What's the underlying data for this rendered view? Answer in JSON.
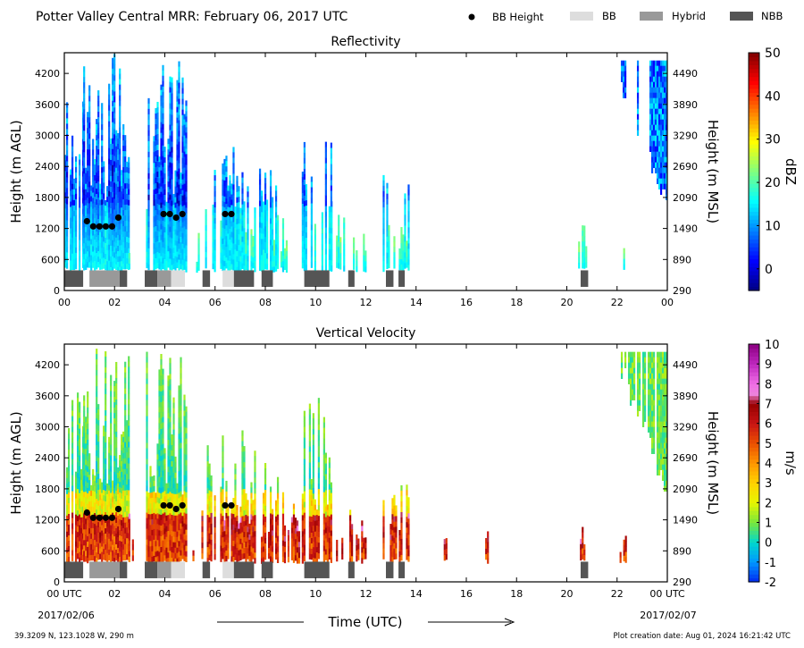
{
  "figure": {
    "title": "Potter Valley Central MRR:  February 06, 2017 UTC",
    "legend": [
      {
        "label": "BB Height",
        "type": "dot",
        "color": "#000000"
      },
      {
        "label": "BB",
        "type": "bar",
        "color": "#dddddd"
      },
      {
        "label": "Hybrid",
        "type": "bar",
        "color": "#999999"
      },
      {
        "label": "NBB",
        "type": "bar",
        "color": "#555555"
      }
    ],
    "footer_left": "39.3209 N, 123.1028 W, 290 m",
    "footer_right": "Plot creation date: Aug 01, 2024 16:21:42 UTC",
    "xlabel": "Time (UTC)",
    "date_start": "2017/02/06",
    "date_end": "2017/02/07"
  },
  "chart_data": [
    {
      "type": "heatmap",
      "title": "Reflectivity",
      "xlabel": "Time (UTC)",
      "ylabel": "Height (m AGL)",
      "ylabel_right": "Height (m MSL)",
      "colorbar_label": "dBZ",
      "colorbar_range": [
        -5,
        50
      ],
      "colorbar_ticks": [
        "0",
        "10",
        "20",
        "30",
        "40",
        "50"
      ],
      "colorbar_tick_values": [
        0,
        10,
        20,
        30,
        40,
        50
      ],
      "x_range": [
        0,
        24
      ],
      "x_ticks": [
        "00",
        "02",
        "04",
        "06",
        "08",
        "10",
        "12",
        "14",
        "16",
        "18",
        "20",
        "22",
        "00"
      ],
      "y_range": [
        0,
        4600
      ],
      "y_ticks": [
        0,
        600,
        1200,
        1800,
        2400,
        3000,
        3600,
        4200
      ],
      "y_ticks_right": [
        290,
        890,
        1490,
        2090,
        2690,
        3290,
        3890,
        4490
      ],
      "bb_height": [
        {
          "t": 0.9,
          "h": 1340
        },
        {
          "t": 1.15,
          "h": 1240
        },
        {
          "t": 1.4,
          "h": 1240
        },
        {
          "t": 1.65,
          "h": 1240
        },
        {
          "t": 1.9,
          "h": 1240
        },
        {
          "t": 2.15,
          "h": 1410
        },
        {
          "t": 3.95,
          "h": 1480
        },
        {
          "t": 4.2,
          "h": 1480
        },
        {
          "t": 4.45,
          "h": 1410
        },
        {
          "t": 4.7,
          "h": 1480
        },
        {
          "t": 6.4,
          "h": 1480
        },
        {
          "t": 6.65,
          "h": 1480
        }
      ],
      "classification": [
        {
          "start": 0.0,
          "end": 0.75,
          "class": "NBB"
        },
        {
          "start": 1.0,
          "end": 2.2,
          "class": "Hybrid"
        },
        {
          "start": 2.2,
          "end": 2.5,
          "class": "NBB"
        },
        {
          "start": 3.2,
          "end": 3.7,
          "class": "NBB"
        },
        {
          "start": 3.7,
          "end": 4.25,
          "class": "Hybrid"
        },
        {
          "start": 4.25,
          "end": 4.8,
          "class": "BB"
        },
        {
          "start": 5.5,
          "end": 5.8,
          "class": "NBB"
        },
        {
          "start": 6.3,
          "end": 6.75,
          "class": "BB"
        },
        {
          "start": 6.75,
          "end": 7.55,
          "class": "NBB"
        },
        {
          "start": 7.85,
          "end": 8.3,
          "class": "NBB"
        },
        {
          "start": 9.55,
          "end": 10.55,
          "class": "NBB"
        },
        {
          "start": 11.3,
          "end": 11.55,
          "class": "NBB"
        },
        {
          "start": 12.8,
          "end": 13.1,
          "class": "NBB"
        },
        {
          "start": 13.3,
          "end": 13.55,
          "class": "NBB"
        },
        {
          "start": 20.55,
          "end": 20.85,
          "class": "NBB"
        }
      ]
    },
    {
      "type": "heatmap",
      "title": "Vertical Velocity",
      "xlabel": "Time (UTC)",
      "ylabel": "Height (m AGL)",
      "ylabel_right": "Height (m MSL)",
      "colorbar_label": "m/s",
      "colorbar_range": [
        -2,
        10
      ],
      "colorbar_ticks": [
        "-2",
        "-1",
        "0",
        "1",
        "2",
        "3",
        "4",
        "5",
        "6",
        "7",
        "8",
        "9",
        "10"
      ],
      "colorbar_tick_values": [
        -2,
        -1,
        0,
        1,
        2,
        3,
        4,
        5,
        6,
        7,
        8,
        9,
        10
      ],
      "x_range": [
        0,
        24
      ],
      "x_ticks": [
        "00 UTC",
        "02",
        "04",
        "06",
        "08",
        "10",
        "12",
        "14",
        "16",
        "18",
        "20",
        "22",
        "00 UTC"
      ],
      "y_range": [
        0,
        4600
      ],
      "y_ticks": [
        0,
        600,
        1200,
        1800,
        2400,
        3000,
        3600,
        4200
      ],
      "y_ticks_right": [
        290,
        890,
        1490,
        2090,
        2690,
        3290,
        3890,
        4490
      ],
      "bb_height": [
        {
          "t": 0.9,
          "h": 1340
        },
        {
          "t": 1.15,
          "h": 1240
        },
        {
          "t": 1.4,
          "h": 1240
        },
        {
          "t": 1.65,
          "h": 1240
        },
        {
          "t": 1.9,
          "h": 1240
        },
        {
          "t": 2.15,
          "h": 1410
        },
        {
          "t": 3.95,
          "h": 1480
        },
        {
          "t": 4.2,
          "h": 1480
        },
        {
          "t": 4.45,
          "h": 1410
        },
        {
          "t": 4.7,
          "h": 1480
        },
        {
          "t": 6.4,
          "h": 1480
        },
        {
          "t": 6.65,
          "h": 1480
        }
      ],
      "classification": [
        {
          "start": 0.0,
          "end": 0.75,
          "class": "NBB"
        },
        {
          "start": 1.0,
          "end": 2.2,
          "class": "Hybrid"
        },
        {
          "start": 2.2,
          "end": 2.5,
          "class": "NBB"
        },
        {
          "start": 3.2,
          "end": 3.7,
          "class": "NBB"
        },
        {
          "start": 3.7,
          "end": 4.25,
          "class": "Hybrid"
        },
        {
          "start": 4.25,
          "end": 4.8,
          "class": "BB"
        },
        {
          "start": 5.5,
          "end": 5.8,
          "class": "NBB"
        },
        {
          "start": 6.3,
          "end": 6.75,
          "class": "BB"
        },
        {
          "start": 6.75,
          "end": 7.55,
          "class": "NBB"
        },
        {
          "start": 7.85,
          "end": 8.3,
          "class": "NBB"
        },
        {
          "start": 9.55,
          "end": 10.55,
          "class": "NBB"
        },
        {
          "start": 11.3,
          "end": 11.55,
          "class": "NBB"
        },
        {
          "start": 12.8,
          "end": 13.1,
          "class": "NBB"
        },
        {
          "start": 13.3,
          "end": 13.55,
          "class": "NBB"
        },
        {
          "start": 20.55,
          "end": 20.85,
          "class": "NBB"
        }
      ]
    }
  ]
}
